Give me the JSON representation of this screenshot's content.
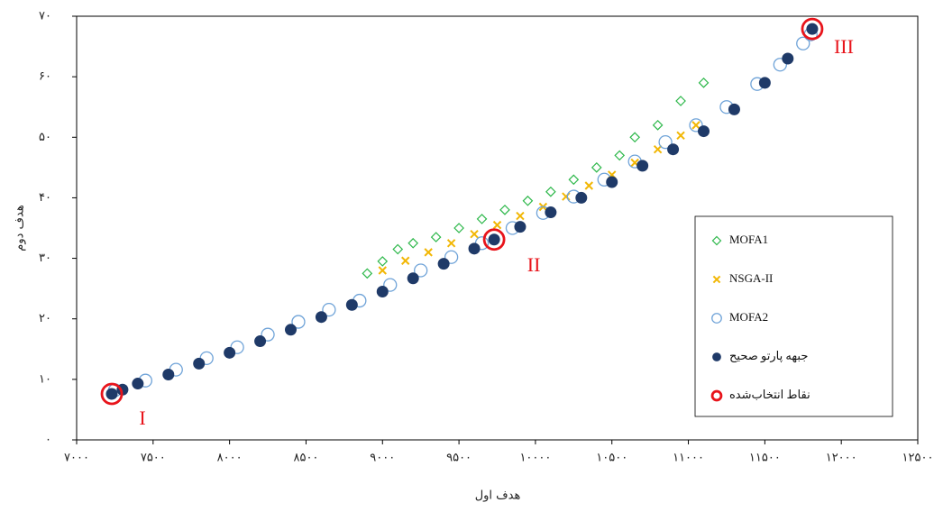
{
  "chart_data": {
    "type": "scatter",
    "xlabel": "هدف اول",
    "ylabel": "هدف دوم",
    "xlim": [
      7000,
      12500
    ],
    "ylim": [
      0,
      70
    ],
    "xticks": [
      {
        "value": 7000,
        "label": "۷۰۰۰"
      },
      {
        "value": 7500,
        "label": "۷۵۰۰"
      },
      {
        "value": 8000,
        "label": "۸۰۰۰"
      },
      {
        "value": 8500,
        "label": "۸۵۰۰"
      },
      {
        "value": 9000,
        "label": "۹۰۰۰"
      },
      {
        "value": 9500,
        "label": "۹۵۰۰"
      },
      {
        "value": 10000,
        "label": "۱۰۰۰۰"
      },
      {
        "value": 10500,
        "label": "۱۰۵۰۰"
      },
      {
        "value": 11000,
        "label": "۱۱۰۰۰"
      },
      {
        "value": 11500,
        "label": "۱۱۵۰۰"
      },
      {
        "value": 12000,
        "label": "۱۲۰۰۰"
      },
      {
        "value": 12500,
        "label": "۱۲۵۰۰"
      }
    ],
    "yticks": [
      {
        "value": 0,
        "label": "۰"
      },
      {
        "value": 10,
        "label": "۱۰"
      },
      {
        "value": 20,
        "label": "۲۰"
      },
      {
        "value": 30,
        "label": "۳۰"
      },
      {
        "value": 40,
        "label": "۴۰"
      },
      {
        "value": 50,
        "label": "۵۰"
      },
      {
        "value": 60,
        "label": "۶۰"
      },
      {
        "value": 70,
        "label": "۷۰"
      }
    ],
    "legend": "right",
    "series": [
      {
        "name": "MOFA1",
        "color": "#2eb84b",
        "marker": "diamond",
        "x": [
          8900,
          9000,
          9100,
          9200,
          9350,
          9500,
          9650,
          9800,
          9950,
          10100,
          10250,
          10400,
          10550,
          10650,
          10800,
          10950,
          11100
        ],
        "values": [
          27.5,
          29.5,
          31.5,
          32.5,
          33.5,
          35.0,
          36.5,
          38.0,
          39.5,
          41.0,
          43.0,
          45.0,
          47.0,
          50.0,
          52.0,
          56.0,
          59.0
        ]
      },
      {
        "name": "NSGA-II",
        "color": "#f2b705",
        "marker": "cross",
        "x": [
          9000,
          9150,
          9300,
          9450,
          9600,
          9750,
          9900,
          10050,
          10200,
          10350,
          10500,
          10650,
          10800,
          10950,
          11050
        ],
        "values": [
          28.0,
          29.6,
          31.0,
          32.5,
          34.0,
          35.5,
          37.0,
          38.5,
          40.2,
          42.0,
          43.8,
          45.8,
          48.0,
          50.3,
          52.0
        ]
      },
      {
        "name": "MOFA2",
        "color": "#6fa3d8",
        "marker": "open-circle",
        "x": [
          7250,
          7450,
          7650,
          7850,
          8050,
          8250,
          8450,
          8650,
          8850,
          9050,
          9250,
          9450,
          9650,
          9850,
          10050,
          10250,
          10450,
          10650,
          10850,
          11050,
          11250,
          11450,
          11600,
          11750,
          11800
        ],
        "values": [
          8.2,
          9.8,
          11.6,
          13.5,
          15.3,
          17.4,
          19.5,
          21.5,
          23.0,
          25.6,
          28.0,
          30.2,
          32.5,
          35.0,
          37.5,
          40.2,
          43.0,
          46.0,
          49.2,
          52.0,
          55.0,
          58.8,
          62.0,
          65.5,
          67.0
        ]
      },
      {
        "name": "جبهه پارتو صحیح",
        "color": "#1f3a68",
        "marker": "filled-circle",
        "x": [
          7230,
          7300,
          7400,
          7600,
          7800,
          8000,
          8200,
          8400,
          8600,
          8800,
          9000,
          9200,
          9400,
          9600,
          9730,
          9900,
          10100,
          10300,
          10500,
          10700,
          10900,
          11100,
          11300,
          11500,
          11650,
          11810
        ],
        "values": [
          7.6,
          8.3,
          9.3,
          10.8,
          12.6,
          14.4,
          16.3,
          18.2,
          20.3,
          22.3,
          24.5,
          26.7,
          29.1,
          31.6,
          33.1,
          35.2,
          37.6,
          40.0,
          42.6,
          45.3,
          48.0,
          51.0,
          54.6,
          59.0,
          63.0,
          67.9
        ]
      },
      {
        "name": "نقاط انتخاب‌شده",
        "color": "#e8141b",
        "marker": "ring",
        "x": [
          7230,
          9730,
          11810
        ],
        "values": [
          7.6,
          33.1,
          67.9
        ],
        "annotations": [
          "I",
          "II",
          "III"
        ]
      }
    ]
  }
}
